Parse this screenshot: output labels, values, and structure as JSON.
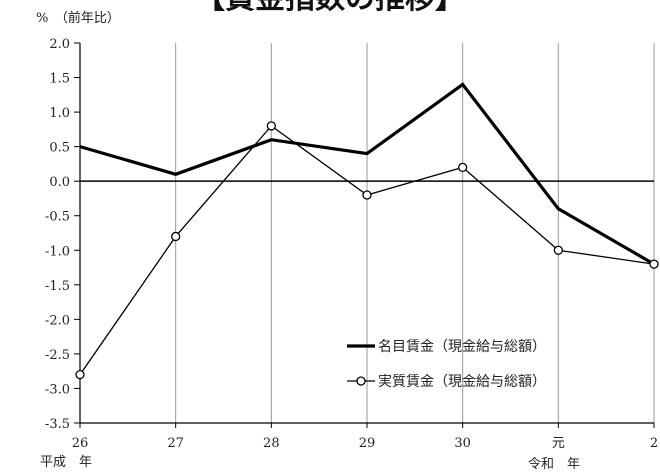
{
  "chart_data": {
    "type": "line",
    "title": "【賃金指数の推移】",
    "ylabel": "%　（前年比）",
    "ylim": [
      -3.5,
      2.0
    ],
    "yticks": [
      "2.0",
      "1.5",
      "1.0",
      "0.5",
      "0.0",
      "-0.5",
      "-1.0",
      "-1.5",
      "-2.0",
      "-2.5",
      "-3.0",
      "-3.5"
    ],
    "categories": [
      "26",
      "27",
      "28",
      "29",
      "30",
      "元",
      "2"
    ],
    "era_labels": {
      "heisei": "平成　年",
      "reiwa": "令和　年"
    },
    "grid": true,
    "legend_position": "lower-right",
    "series": [
      {
        "name": "名目賃金（現金給与総額）",
        "values": [
          0.5,
          0.1,
          0.6,
          0.4,
          1.4,
          -0.4,
          -1.2
        ],
        "style": "thick",
        "marker": "none",
        "color": "#000000"
      },
      {
        "name": "実質賃金（現金給与総額）",
        "values": [
          -2.8,
          -0.8,
          0.8,
          -0.2,
          0.2,
          -1.0,
          -1.2
        ],
        "style": "thin",
        "marker": "open-circle",
        "color": "#000000"
      }
    ]
  }
}
